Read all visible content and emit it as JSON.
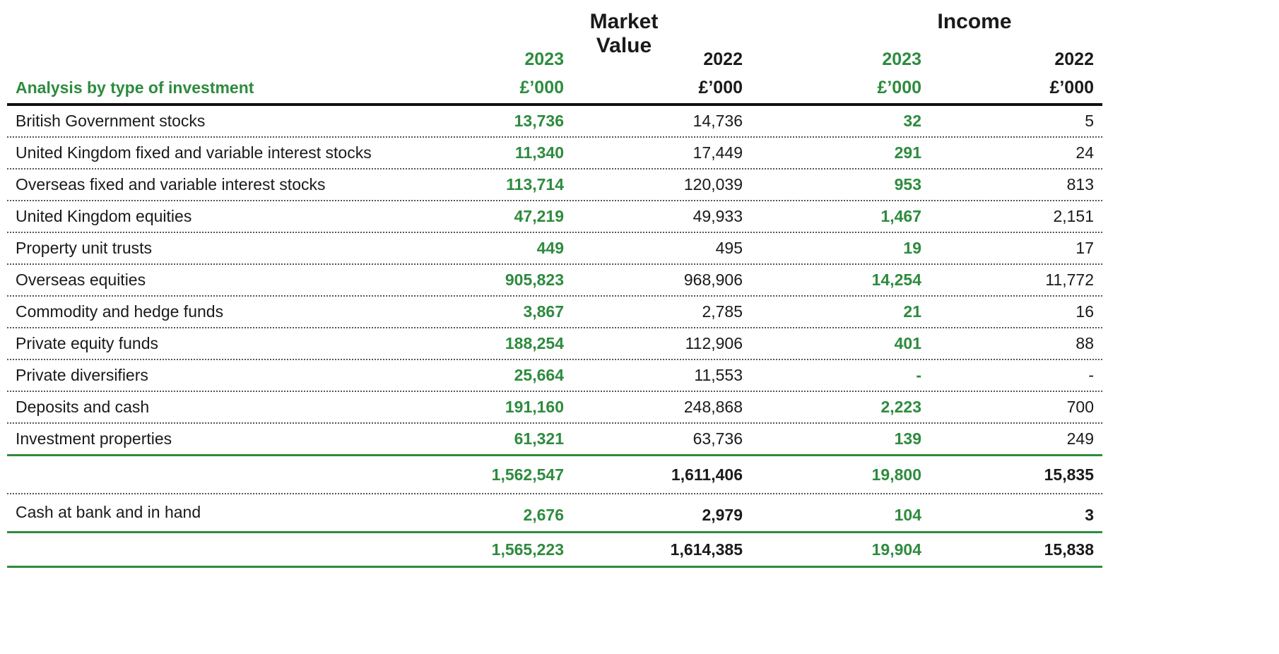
{
  "groups": {
    "market_value": "Market Value",
    "income": "Income"
  },
  "years": {
    "mv_2023": "2023",
    "mv_2022": "2022",
    "inc_2023": "2023",
    "inc_2022": "2022"
  },
  "units": {
    "mv_2023": "£’000",
    "mv_2022": "£’000",
    "inc_2023": "£’000",
    "inc_2022": "£’000"
  },
  "section_title": "Analysis by type of investment",
  "rows": [
    {
      "label": "British Government stocks",
      "mv2023": "13,736",
      "mv2022": "14,736",
      "inc2023": "32",
      "inc2022": "5"
    },
    {
      "label": "United Kingdom fixed and variable interest stocks",
      "mv2023": "11,340",
      "mv2022": "17,449",
      "inc2023": "291",
      "inc2022": "24"
    },
    {
      "label": "Overseas fixed and variable interest stocks",
      "mv2023": "113,714",
      "mv2022": "120,039",
      "inc2023": "953",
      "inc2022": "813"
    },
    {
      "label": "United Kingdom equities",
      "mv2023": "47,219",
      "mv2022": "49,933",
      "inc2023": "1,467",
      "inc2022": "2,151"
    },
    {
      "label": "Property unit trusts",
      "mv2023": "449",
      "mv2022": "495",
      "inc2023": "19",
      "inc2022": "17"
    },
    {
      "label": "Overseas equities",
      "mv2023": "905,823",
      "mv2022": "968,906",
      "inc2023": "14,254",
      "inc2022": "11,772"
    },
    {
      "label": "Commodity and hedge funds",
      "mv2023": "3,867",
      "mv2022": "2,785",
      "inc2023": "21",
      "inc2022": "16"
    },
    {
      "label": "Private equity funds",
      "mv2023": "188,254",
      "mv2022": "112,906",
      "inc2023": "401",
      "inc2022": "88"
    },
    {
      "label": "Private diversifiers",
      "mv2023": "25,664",
      "mv2022": "11,553",
      "inc2023": "-",
      "inc2022": "-"
    },
    {
      "label": "Deposits and cash",
      "mv2023": "191,160",
      "mv2022": "248,868",
      "inc2023": "2,223",
      "inc2022": "700"
    },
    {
      "label": "Investment properties",
      "mv2023": "61,321",
      "mv2022": "63,736",
      "inc2023": "139",
      "inc2022": "249"
    }
  ],
  "subtotal": {
    "mv2023": "1,562,547",
    "mv2022": "1,611,406",
    "inc2023": "19,800",
    "inc2022": "15,835"
  },
  "cash_row": {
    "label": "Cash at bank and in hand",
    "mv2023": "2,676",
    "mv2022": "2,979",
    "inc2023": "104",
    "inc2022": "3"
  },
  "grand_total": {
    "mv2023": "1,565,223",
    "mv2022": "1,614,385",
    "inc2023": "19,904",
    "inc2022": "15,838"
  },
  "colors": {
    "accent_green": "#2e8b3e",
    "text_dark": "#1a1a1a",
    "rule_black": "#111111"
  }
}
